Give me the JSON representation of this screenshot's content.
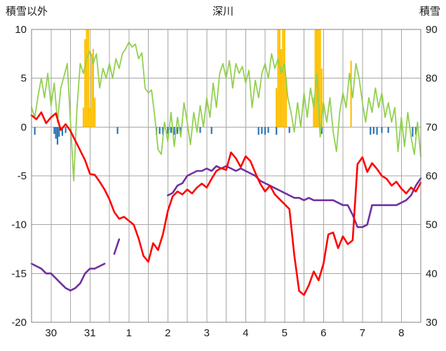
{
  "header": {
    "left_axis_title": "積雪以外",
    "chart_title": "深川",
    "right_axis_title": "積雪"
  },
  "chart_data": {
    "type": "line",
    "title": "深川",
    "left_axis": {
      "label": "積雪以外",
      "min": -20,
      "max": 10,
      "ticks": [
        10,
        5,
        0,
        -5,
        -10,
        -15,
        -20
      ]
    },
    "right_axis": {
      "label": "積雪",
      "min": 30,
      "max": 90,
      "ticks": [
        90,
        80,
        70,
        60,
        50,
        40,
        30
      ]
    },
    "x_axis": {
      "day_labels": [
        "30",
        "31",
        "1",
        "2",
        "3",
        "4",
        "5",
        "6",
        "7",
        "8"
      ],
      "hours_total": 240,
      "grid_hours": 12
    },
    "style": {
      "grid_color": "#a6a6a6",
      "border_color": "#808080",
      "text_color": "#1a1a1a",
      "background": "#ffffff"
    },
    "series": [
      {
        "name": "orange-bars",
        "type": "bar",
        "axis": "left",
        "color": "#FFC000",
        "x": [
          32,
          33,
          34,
          35,
          36,
          37,
          38,
          39,
          151,
          152,
          153,
          154,
          155,
          156,
          157,
          174,
          175,
          176,
          177,
          178,
          179,
          197
        ],
        "y": [
          2,
          9,
          10,
          10,
          2,
          7.5,
          8,
          3,
          4,
          10,
          10,
          8,
          10,
          10,
          5,
          3,
          10,
          10,
          10,
          10,
          6,
          6.8
        ]
      },
      {
        "name": "blue-bars",
        "type": "bar",
        "axis": "left",
        "color": "#2E75B6",
        "x": [
          2,
          14,
          15,
          16,
          17,
          19,
          21,
          53,
          77,
          79,
          81,
          84,
          86,
          88,
          90,
          92,
          104,
          111,
          140,
          142,
          144,
          146,
          151,
          159,
          179,
          209,
          211,
          213,
          216,
          220,
          235,
          237
        ],
        "y": [
          -0.8,
          -0.7,
          -1.2,
          -1.8,
          -1.0,
          -0.9,
          -0.6,
          -0.7,
          -0.8,
          -0.7,
          -0.8,
          -0.7,
          -0.6,
          -0.8,
          -0.7,
          -0.6,
          -0.6,
          -0.7,
          -0.8,
          -0.7,
          -0.8,
          -0.6,
          -0.8,
          -0.6,
          -0.7,
          -0.8,
          -0.7,
          -0.8,
          -0.6,
          -0.6,
          -1.0,
          -0.8
        ]
      },
      {
        "name": "green-line",
        "type": "line",
        "axis": "left",
        "color": "#92D050",
        "width": 1.8,
        "x0": 0,
        "dx": 2,
        "y": [
          2.0,
          1.0,
          3.2,
          5.0,
          3.0,
          5.5,
          2.2,
          4.5,
          0.5,
          4.0,
          5.2,
          6.5,
          0.5,
          -5.5,
          2.0,
          6.5,
          5.5,
          7.0,
          7.8,
          6.5,
          7.5,
          4.0,
          6.0,
          5.0,
          6.5,
          5.0,
          7.0,
          6.0,
          7.5,
          8.0,
          8.7,
          8.2,
          8.5,
          7.0,
          7.6,
          4.0,
          3.5,
          3.8,
          1.0,
          -2.3,
          -2.8,
          0.5,
          -1.5,
          1.5,
          -2.0,
          1.0,
          -1.0,
          2.5,
          0.5,
          -1.8,
          1.5,
          -0.5,
          2.2,
          0.0,
          3.0,
          1.0,
          4.5,
          2.0,
          5.5,
          6.5,
          5.0,
          6.8,
          4.0,
          6.5,
          5.5,
          6.2,
          4.5,
          5.8,
          2.0,
          4.8,
          3.0,
          5.5,
          6.5,
          5.0,
          7.5,
          6.0,
          7.0,
          5.5,
          6.5,
          3.0,
          1.5,
          -0.5,
          2.5,
          0.0,
          3.5,
          1.0,
          4.0,
          2.0,
          5.5,
          -1.0,
          2.5,
          0.5,
          3.0,
          -0.5,
          -2.5,
          1.5,
          3.5,
          2.0,
          5.5,
          3.0,
          6.5,
          5.0,
          2.5,
          0.5,
          3.0,
          1.5,
          4.0,
          2.0,
          3.5,
          1.0,
          2.5,
          0.5,
          2.0,
          -2.5,
          1.0,
          -2.0,
          1.5,
          -1.0,
          -2.8,
          0.5,
          -3.0
        ]
      },
      {
        "name": "purple-line-snow-depth",
        "type": "line",
        "axis": "right",
        "color": "#7030A0",
        "width": 2.6,
        "x0": 0,
        "dx": 3,
        "y": [
          42,
          41.5,
          41,
          40,
          40,
          39,
          38,
          37,
          36.5,
          37,
          38,
          40,
          41,
          41,
          41.5,
          42,
          null,
          44,
          47,
          null,
          null,
          null,
          null,
          null,
          null,
          null,
          null,
          null,
          56,
          56.5,
          58,
          58.5,
          60,
          60.5,
          61,
          61,
          61.5,
          61,
          62,
          61.5,
          62,
          61.5,
          61,
          61.5,
          61,
          60.5,
          60,
          59,
          58.5,
          58,
          57.5,
          57,
          56.5,
          56,
          55.5,
          55.5,
          55,
          55.5,
          55,
          55,
          55,
          55,
          55,
          54.5,
          54,
          54,
          52,
          49.5,
          49.5,
          50,
          54,
          54,
          54,
          54,
          54,
          54,
          54.5,
          55,
          56,
          58,
          59.5
        ]
      },
      {
        "name": "red-line",
        "type": "line",
        "axis": "left",
        "color": "#FF0000",
        "width": 2.6,
        "x0": 0,
        "dx": 3,
        "y": [
          1.2,
          0.8,
          1.5,
          0.4,
          1.0,
          1.4,
          -0.3,
          0.3,
          -0.4,
          -1.4,
          -2.4,
          -3.4,
          -4.8,
          -4.9,
          -5.6,
          -6.4,
          -7.4,
          -8.7,
          -9.4,
          -9.2,
          -9.6,
          -10.0,
          -11.4,
          -13.2,
          -13.8,
          -11.9,
          -12.6,
          -11.0,
          -8.6,
          -7.1,
          -6.6,
          -6.9,
          -6.4,
          -6.8,
          -6.2,
          -5.8,
          -6.2,
          -5.3,
          -4.5,
          -4.2,
          -4.4,
          -2.6,
          -3.2,
          -4.1,
          -3.0,
          -3.5,
          -4.7,
          -5.8,
          -6.6,
          -6.0,
          -6.9,
          -7.4,
          -7.9,
          -8.4,
          -13.1,
          -16.8,
          -17.2,
          -16.2,
          -14.8,
          -15.7,
          -14.0,
          -11.0,
          -10.8,
          -12.4,
          -11.2,
          -12.0,
          -11.6,
          -3.8,
          -3.1,
          -4.6,
          -3.7,
          -4.3,
          -5.0,
          -5.3,
          -6.0,
          -5.6,
          -6.3,
          -6.8,
          -6.2,
          -6.6,
          -5.7
        ]
      }
    ]
  }
}
